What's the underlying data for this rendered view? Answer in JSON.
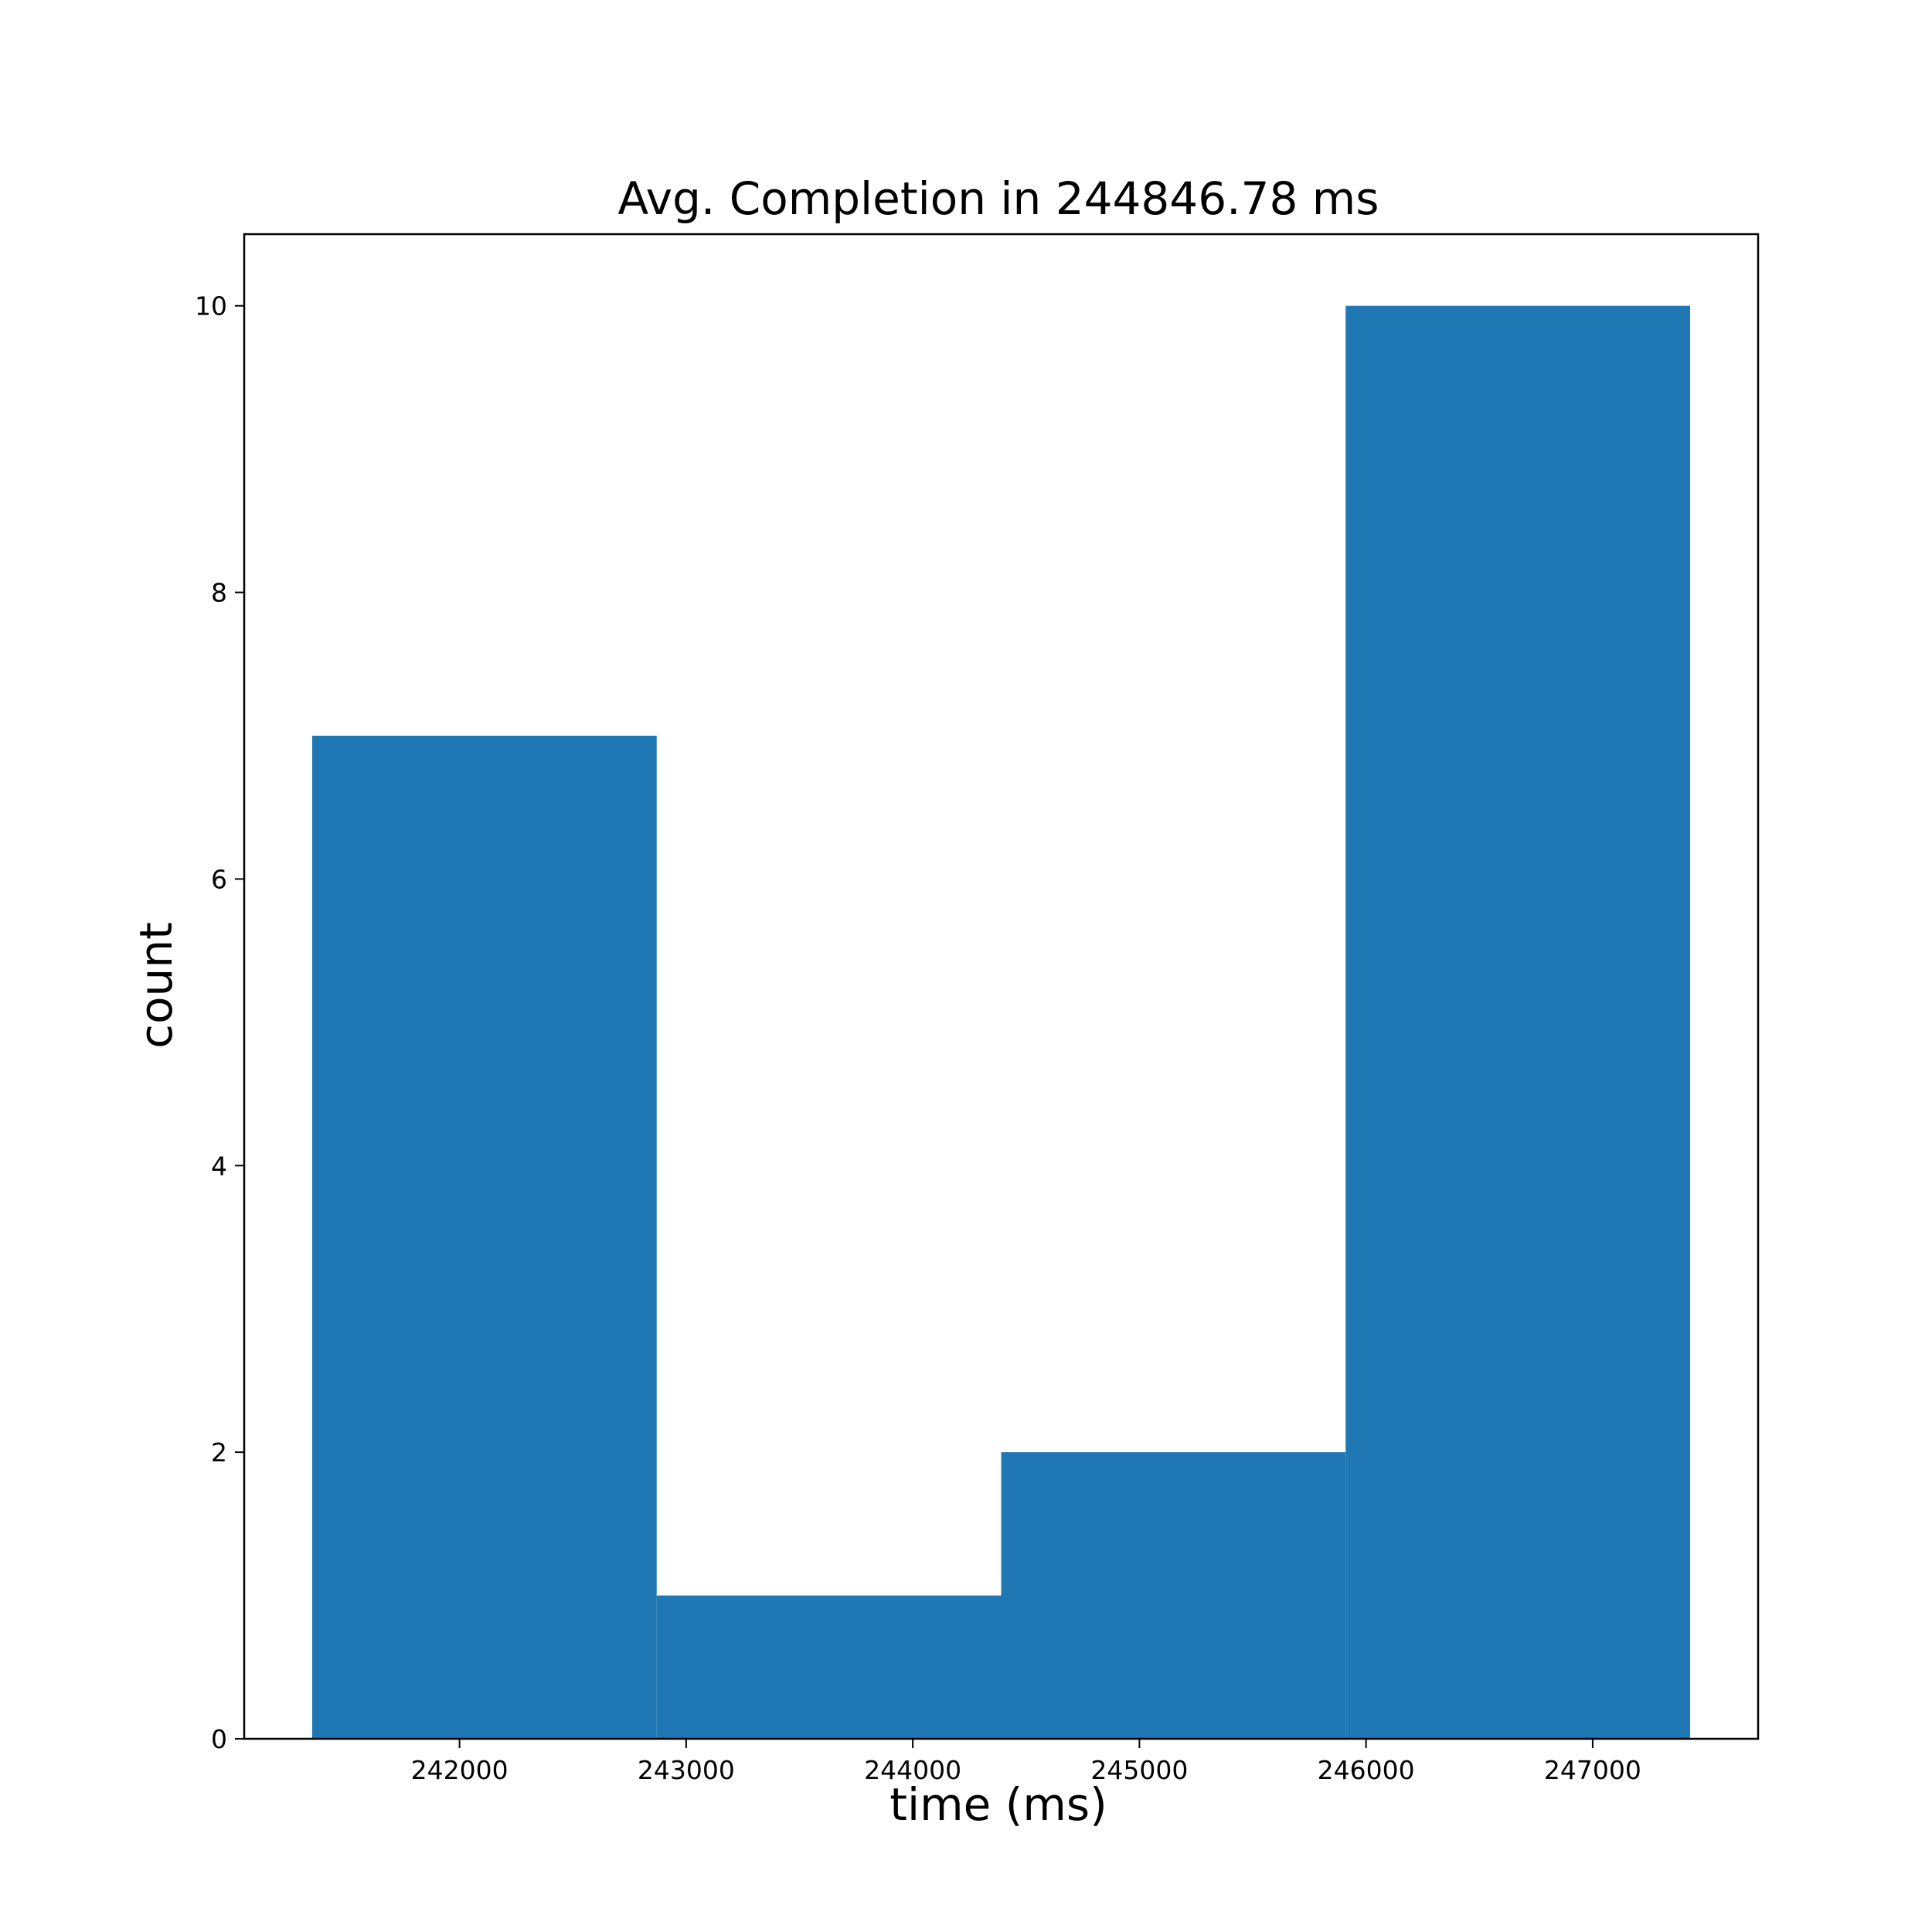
{
  "chart_data": {
    "type": "bar",
    "title": "Avg. Completion in 244846.78 ms",
    "xlabel": "time (ms)",
    "ylabel": "count",
    "bins": [
      {
        "x0": 241350,
        "x1": 242870,
        "count": 7
      },
      {
        "x0": 242870,
        "x1": 244390,
        "count": 1
      },
      {
        "x0": 244390,
        "x1": 245910,
        "count": 2
      },
      {
        "x0": 245910,
        "x1": 247430,
        "count": 10
      }
    ],
    "xlim": [
      241050,
      247730
    ],
    "ylim": [
      0,
      10.5
    ],
    "xticks": [
      242000,
      243000,
      244000,
      245000,
      246000,
      247000
    ],
    "yticks": [
      0,
      2,
      4,
      6,
      8,
      10
    ],
    "grid": false,
    "bar_color": "#1f77b4"
  }
}
